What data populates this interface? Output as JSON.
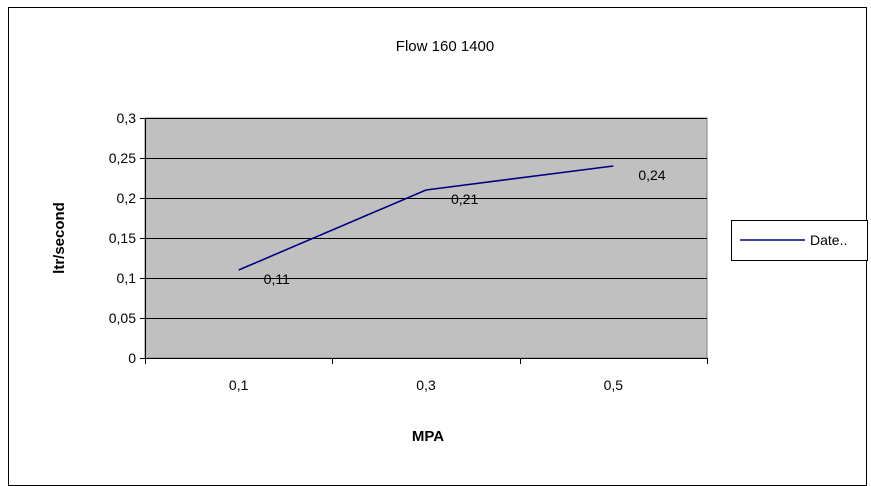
{
  "chart_data": {
    "type": "line",
    "title": "Flow 160 1400",
    "xlabel": "MPA",
    "ylabel": "ltr/second",
    "categories": [
      "0,1",
      "0,3",
      "0,5"
    ],
    "series": [
      {
        "name": "Date..",
        "values": [
          0.11,
          0.21,
          0.24
        ],
        "labels": [
          "0,11",
          "0,21",
          "0,24"
        ]
      }
    ],
    "ylim": [
      0,
      0.3
    ],
    "yticks": [
      0,
      0.05,
      0.1,
      0.15,
      0.2,
      0.25,
      0.3
    ],
    "ytick_labels": [
      "0",
      "0,05",
      "0,1",
      "0,15",
      "0,2",
      "0,25",
      "0,3"
    ],
    "grid": true,
    "legend": "right",
    "colors": {
      "plot_background": "#c0c0c0",
      "line": "#000080",
      "gridline": "#000000",
      "border": "#000000"
    }
  }
}
